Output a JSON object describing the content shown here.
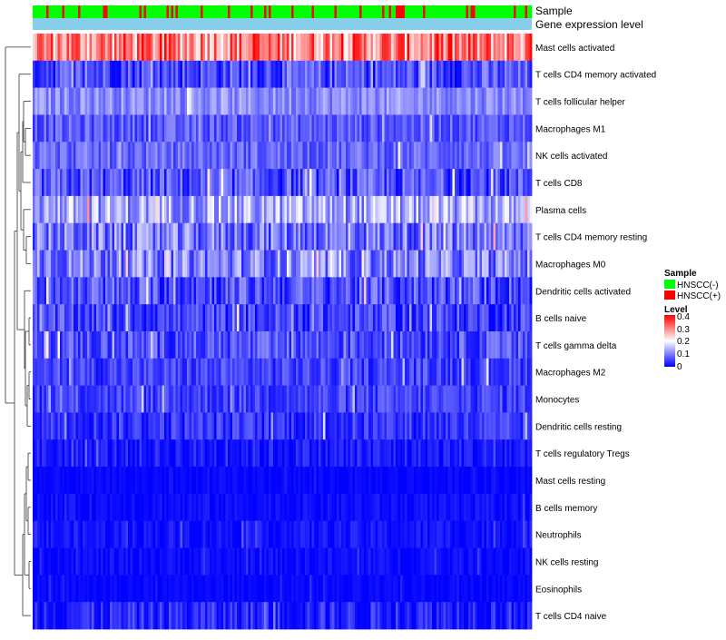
{
  "chart_data": {
    "type": "heatmap",
    "title": "",
    "annotation_tracks": [
      {
        "name": "Sample",
        "label": "Sample"
      },
      {
        "name": "Gene expression level",
        "label": "Gene expression level"
      }
    ],
    "rows": [
      {
        "label": "Mast cells activated",
        "level": 0.3,
        "spread": 0.1
      },
      {
        "label": "T cells CD4 memory activated",
        "level": 0.06,
        "spread": 0.06
      },
      {
        "label": "T cells follicular helper",
        "level": 0.11,
        "spread": 0.04
      },
      {
        "label": "Macrophages M1",
        "level": 0.07,
        "spread": 0.04
      },
      {
        "label": "NK cells activated",
        "level": 0.08,
        "spread": 0.04
      },
      {
        "label": "T cells CD8",
        "level": 0.06,
        "spread": 0.06
      },
      {
        "label": "Plasma cells",
        "level": 0.13,
        "spread": 0.07
      },
      {
        "label": "T cells CD4 memory resting",
        "level": 0.09,
        "spread": 0.07
      },
      {
        "label": "Macrophages M0",
        "level": 0.1,
        "spread": 0.07
      },
      {
        "label": "Dendritic cells activated",
        "level": 0.06,
        "spread": 0.06
      },
      {
        "label": "B cells naive",
        "level": 0.05,
        "spread": 0.05
      },
      {
        "label": "T cells gamma delta",
        "level": 0.06,
        "spread": 0.05
      },
      {
        "label": "Macrophages M2",
        "level": 0.05,
        "spread": 0.04
      },
      {
        "label": "Monocytes",
        "level": 0.05,
        "spread": 0.04
      },
      {
        "label": "Dendritic cells resting",
        "level": 0.04,
        "spread": 0.04
      },
      {
        "label": "T cells regulatory  Tregs",
        "level": 0.02,
        "spread": 0.03
      },
      {
        "label": "Mast cells resting",
        "level": 0.005,
        "spread": 0.01
      },
      {
        "label": "B cells memory",
        "level": 0.01,
        "spread": 0.015
      },
      {
        "label": "Neutrophils",
        "level": 0.015,
        "spread": 0.02
      },
      {
        "label": "NK cells resting",
        "level": 0.01,
        "spread": 0.015
      },
      {
        "label": "Eosinophils",
        "level": 0.005,
        "spread": 0.01
      },
      {
        "label": "T cells CD4 naive",
        "level": 0.03,
        "spread": 0.04
      }
    ],
    "n_samples": 220,
    "hnscc_positive_fraction": 0.2,
    "value_range": [
      0,
      0.4
    ],
    "legend": {
      "sample_title": "Sample",
      "sample_entries": [
        {
          "label": "HNSCC(-)",
          "color": "#00ff00"
        },
        {
          "label": "HNSCC(+)",
          "color": "#ff0000"
        }
      ],
      "level_title": "Level",
      "level_ticks": [
        "0.4",
        "0.3",
        "0.2",
        "0.1",
        "0"
      ]
    },
    "colors": {
      "low": "#0000ff",
      "mid": "#ffffff",
      "high": "#ff0000",
      "gene_expression_track": "#87ceeb"
    }
  }
}
